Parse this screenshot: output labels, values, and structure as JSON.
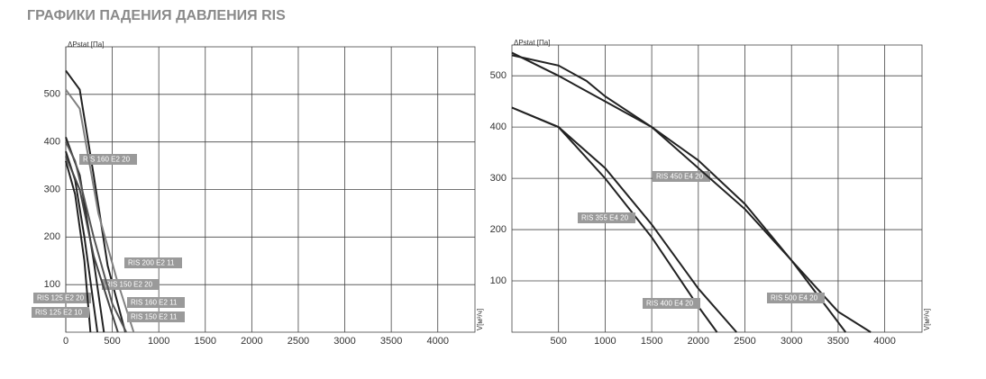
{
  "title": "ГРАФИКИ ПАДЕНИЯ ДАВЛЕНИЯ RIS",
  "chart_data": [
    {
      "type": "line",
      "y_label": "ΔPstat [Па]",
      "x_label": "V[м³/ч]",
      "xlim": [
        0,
        4400
      ],
      "ylim": [
        0,
        600
      ],
      "grid": true,
      "xticks": [
        0,
        500,
        1000,
        1500,
        2000,
        2500,
        3000,
        3500,
        4000
      ],
      "yticks": [
        100,
        200,
        300,
        400,
        500
      ],
      "series": [
        {
          "name": "RIS 160 E2 20",
          "color": "#222222",
          "x": [
            0,
            150,
            300,
            450,
            640
          ],
          "values": [
            550,
            510,
            330,
            140,
            0
          ]
        },
        {
          "name": "RIS 200 E2 11",
          "color": "#808080",
          "x": [
            0,
            150,
            350,
            550,
            730
          ],
          "values": [
            510,
            470,
            250,
            110,
            0
          ]
        },
        {
          "name": "RIS 150 E2 20",
          "color": "#222222",
          "x": [
            0,
            150,
            300,
            410
          ],
          "values": [
            410,
            330,
            150,
            0
          ]
        },
        {
          "name": "RIS 125 E2 20",
          "color": "#222222",
          "x": [
            0,
            100,
            200,
            340
          ],
          "values": [
            380,
            320,
            200,
            0
          ]
        },
        {
          "name": "RIS 160 E2 11",
          "color": "#555555",
          "x": [
            0,
            100,
            300,
            500,
            650
          ],
          "values": [
            400,
            360,
            200,
            60,
            0
          ]
        },
        {
          "name": "RIS 125 E2 10",
          "color": "#222222",
          "x": [
            0,
            100,
            200,
            265
          ],
          "values": [
            360,
            290,
            150,
            0
          ]
        },
        {
          "name": "RIS 150 E2 11",
          "color": "#444444",
          "x": [
            0,
            150,
            300,
            560
          ],
          "values": [
            370,
            300,
            160,
            0
          ]
        }
      ]
    },
    {
      "type": "line",
      "y_label": "ΔPstat [Па]",
      "x_label": "V[м³/ч]",
      "xlim": [
        0,
        4400
      ],
      "ylim": [
        0,
        560
      ],
      "grid": true,
      "xticks": [
        500,
        1000,
        1500,
        2000,
        2500,
        3000,
        3500,
        4000
      ],
      "yticks": [
        100,
        200,
        300,
        400,
        500
      ],
      "series": [
        {
          "name": "RIS 450 E4 20",
          "color": "#222222",
          "x": [
            0,
            500,
            1000,
            1500,
            2000,
            2500,
            3000,
            3580
          ],
          "values": [
            545,
            500,
            450,
            400,
            335,
            250,
            140,
            0
          ]
        },
        {
          "name": "RIS 355 E4 20",
          "color": "#222222",
          "x": [
            0,
            500,
            1000,
            1500,
            2000,
            2200
          ],
          "values": [
            438,
            400,
            300,
            185,
            50,
            0
          ]
        },
        {
          "name": "RIS 400 E4 20",
          "color": "#222222",
          "x": [
            0,
            500,
            1000,
            1500,
            2000,
            2410
          ],
          "values": [
            438,
            400,
            320,
            210,
            85,
            0
          ]
        },
        {
          "name": "RIS 500 E4 20",
          "color": "#222222",
          "x": [
            0,
            500,
            800,
            1000,
            1500,
            2000,
            2500,
            3000,
            3500,
            3850
          ],
          "values": [
            540,
            520,
            490,
            460,
            400,
            320,
            240,
            140,
            40,
            0
          ]
        }
      ]
    }
  ]
}
